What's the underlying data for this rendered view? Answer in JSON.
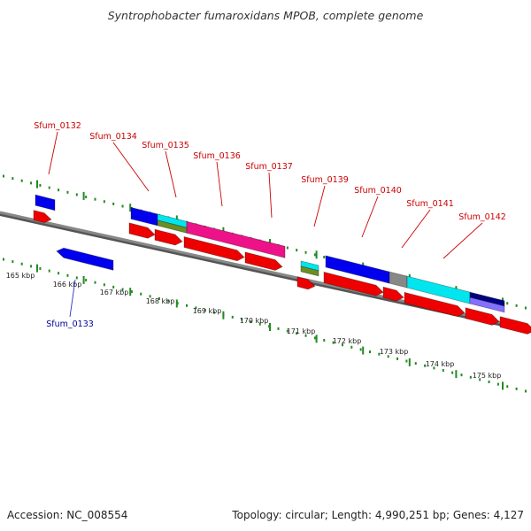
{
  "title": "Syntrophobacter fumaroxidans MPOB, complete genome",
  "footer": {
    "accession": "Accession: NC_008554",
    "summary": "Topology: circular; Length: 4,990,251 bp; Genes: 4,127"
  },
  "colors": {
    "backbone": "#888888",
    "tick": "#228B22",
    "label_forward": "#cc0000",
    "label_reverse": "#000099",
    "leader_forward": "#cc0000",
    "leader_reverse": "#3333cc"
  },
  "scale_labels": [
    "165 kbp",
    "166 kbp",
    "167 kbp",
    "168 kbp",
    "169 kbp",
    "170 kbp",
    "171 kbp",
    "172 kbp",
    "173 kbp",
    "174 kbp",
    "175 kbp"
  ],
  "gene_labels": [
    {
      "name": "Sfum_0132",
      "strand": "forward"
    },
    {
      "name": "Sfum_0133",
      "strand": "reverse"
    },
    {
      "name": "Sfum_0134",
      "strand": "forward"
    },
    {
      "name": "Sfum_0135",
      "strand": "forward"
    },
    {
      "name": "Sfum_0136",
      "strand": "forward"
    },
    {
      "name": "Sfum_0137",
      "strand": "forward"
    },
    {
      "name": "Sfum_0139",
      "strand": "forward"
    },
    {
      "name": "Sfum_0140",
      "strand": "forward"
    },
    {
      "name": "Sfum_0141",
      "strand": "forward"
    },
    {
      "name": "Sfum_0142",
      "strand": "forward"
    }
  ],
  "feature_colors": [
    "#0000ee",
    "#00e5ee",
    "#6b8e23",
    "#ee1289",
    "#888888",
    "#000080",
    "#8470ff",
    "#ee0000"
  ]
}
